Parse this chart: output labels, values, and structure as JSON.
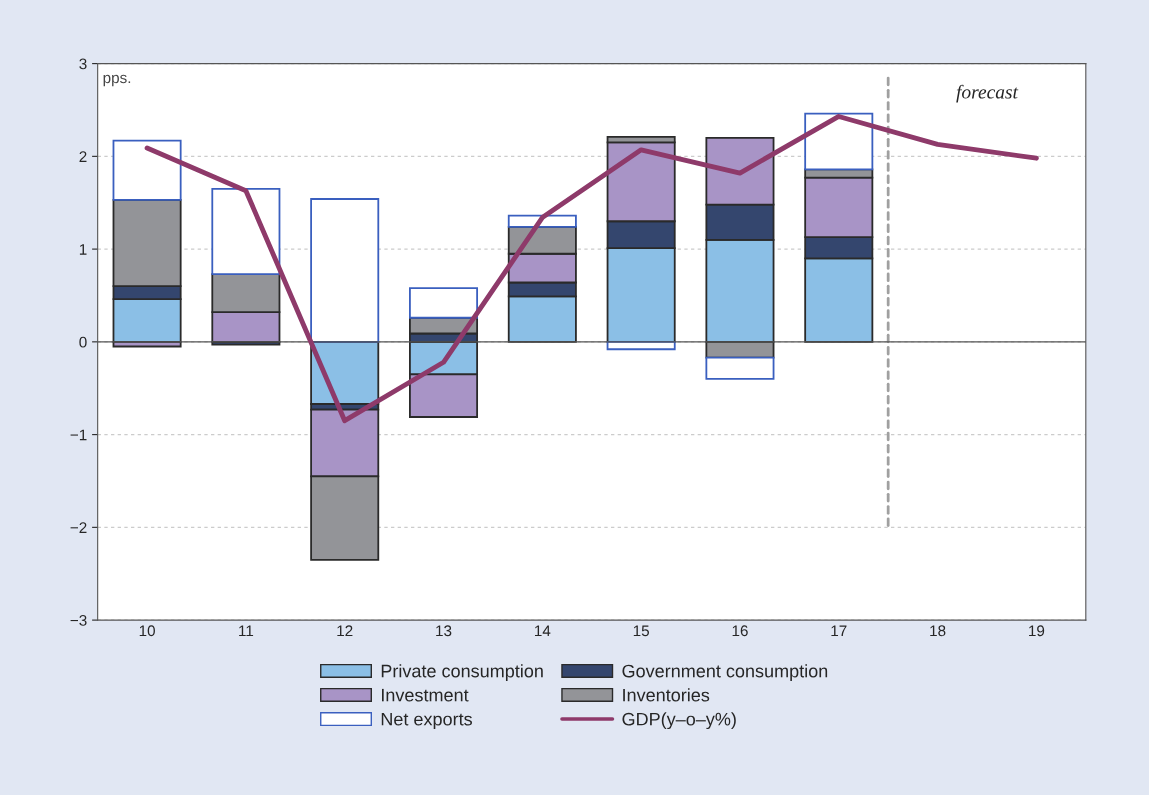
{
  "chart_data": {
    "type": "bar",
    "stacked": true,
    "categories": [
      "10",
      "11",
      "12",
      "13",
      "14",
      "15",
      "16",
      "17",
      "18",
      "19"
    ],
    "series": [
      {
        "name": "Private consumption",
        "color": "#8bbfe6",
        "values": [
          0.46,
          0,
          -0.67,
          -0.35,
          0.49,
          1.01,
          1.1,
          0.9,
          null,
          null
        ]
      },
      {
        "name": "Government consumption",
        "color": "#34466e",
        "values": [
          0.14,
          -0.03,
          -0.06,
          0.09,
          0.15,
          0.29,
          0.38,
          0.23,
          null,
          null
        ]
      },
      {
        "name": "Investment",
        "color": "#a894c6",
        "values": [
          -0.05,
          0.32,
          -0.72,
          -0.46,
          0.31,
          0.85,
          0.72,
          0.64,
          null,
          null
        ]
      },
      {
        "name": "Inventories",
        "color": "#939498",
        "values": [
          0.93,
          0.41,
          -0.9,
          0.17,
          0.29,
          0.06,
          -0.17,
          0.09,
          null,
          null
        ]
      },
      {
        "name": "Net exports",
        "color": "#ffffff",
        "values": [
          0.64,
          0.92,
          1.54,
          0.32,
          0.12,
          -0.08,
          -0.23,
          0.6,
          null,
          null
        ]
      },
      {
        "name": "GDP(y–o–y%)",
        "type": "line",
        "color": "#8e3a6a",
        "values": [
          2.09,
          1.63,
          -0.85,
          -0.22,
          1.34,
          2.07,
          1.82,
          2.43,
          2.13,
          1.98
        ]
      }
    ],
    "ylim": [
      -3,
      3
    ],
    "yticks": [
      {
        "value": -3,
        "label": "−3"
      },
      {
        "value": -2,
        "label": "−2"
      },
      {
        "value": -1,
        "label": "−1"
      },
      0,
      1,
      2,
      3
    ],
    "grid": "y",
    "legend": "bottom",
    "marker": "none",
    "annotations": [
      "pps.",
      "forecast"
    ]
  }
}
